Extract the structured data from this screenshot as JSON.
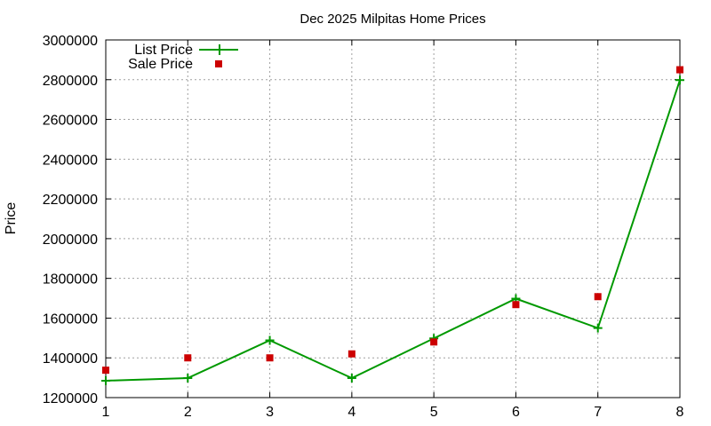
{
  "chart_data": {
    "type": "line",
    "title": "Dec 2025 Milpitas Home Prices",
    "xlabel": "",
    "ylabel": "Price",
    "x": [
      1,
      2,
      3,
      4,
      5,
      6,
      7,
      8
    ],
    "xlim": [
      1,
      8
    ],
    "ylim": [
      1200000,
      3000000
    ],
    "yticks": [
      1200000,
      1400000,
      1600000,
      1800000,
      2000000,
      2200000,
      2400000,
      2600000,
      2800000,
      3000000
    ],
    "grid": true,
    "legend_position": "top-left",
    "series": [
      {
        "name": "List Price",
        "style": "line-with-plus-markers",
        "color": "#009900",
        "values": [
          1285000,
          1298000,
          1488000,
          1298000,
          1498000,
          1698000,
          1550000,
          2798000
        ]
      },
      {
        "name": "Sale Price",
        "style": "square-markers",
        "color": "#cc0000",
        "values": [
          1338000,
          1400000,
          1400000,
          1420000,
          1480000,
          1668000,
          1708000,
          2850000
        ]
      }
    ]
  }
}
